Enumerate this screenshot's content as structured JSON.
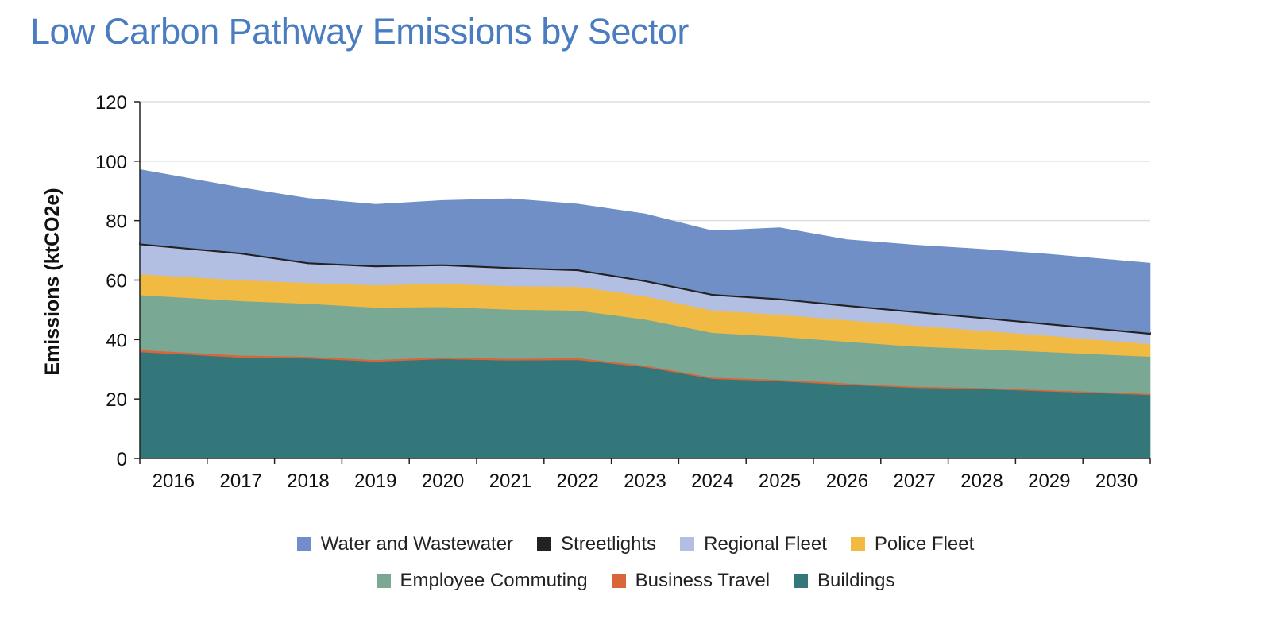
{
  "title": "Low Carbon Pathway Emissions by Sector",
  "chart_data": {
    "type": "area",
    "stacked": true,
    "title": "Low Carbon Pathway Emissions by Sector",
    "xlabel": "",
    "ylabel": "Emissions (ktCO2e)",
    "ylim": [
      0,
      120
    ],
    "yticks": [
      "0",
      "20",
      "40",
      "60",
      "80",
      "100",
      "120"
    ],
    "categories": [
      "2016",
      "2017",
      "2018",
      "2019",
      "2020",
      "2021",
      "2022",
      "2023",
      "2024",
      "2025",
      "2026",
      "2027",
      "2028",
      "2029",
      "2030"
    ],
    "grid": true,
    "legend_position": "bottom",
    "series": [
      {
        "name": "Buildings",
        "color": "#33777a",
        "values": [
          35.8,
          34.0,
          33.7,
          32.6,
          33.5,
          33.0,
          33.2,
          30.8,
          26.8,
          26.0,
          24.8,
          23.8,
          23.4,
          22.6,
          21.4
        ]
      },
      {
        "name": "Business Travel",
        "color": "#d9663a",
        "values": [
          0.7,
          0.7,
          0.6,
          0.6,
          0.6,
          0.6,
          0.6,
          0.5,
          0.5,
          0.5,
          0.5,
          0.4,
          0.4,
          0.4,
          0.4
        ]
      },
      {
        "name": "Employee Commuting",
        "color": "#79a895",
        "values": [
          18.5,
          18.3,
          17.8,
          17.6,
          16.9,
          16.5,
          16.0,
          15.5,
          15.0,
          14.5,
          14.0,
          13.5,
          13.0,
          12.8,
          12.5
        ]
      },
      {
        "name": "Police Fleet",
        "color": "#f1ba42",
        "values": [
          7.0,
          7.0,
          7.0,
          7.5,
          7.8,
          7.9,
          8.0,
          7.8,
          7.5,
          7.4,
          7.2,
          7.0,
          6.2,
          5.5,
          4.2
        ]
      },
      {
        "name": "Regional Fleet",
        "color": "#b3bfe2",
        "values": [
          10.0,
          8.9,
          6.5,
          6.3,
          6.2,
          6.0,
          5.5,
          5.0,
          5.2,
          5.1,
          4.8,
          4.5,
          4.2,
          3.8,
          3.4
        ]
      },
      {
        "name": "Streetlights",
        "color": "#222222",
        "values": [
          0.4,
          0.4,
          0.4,
          0.4,
          0.4,
          0.4,
          0.4,
          0.4,
          0.4,
          0.4,
          0.4,
          0.4,
          0.4,
          0.4,
          0.4
        ]
      },
      {
        "name": "Water and Wastewater",
        "color": "#6f8fc6",
        "values": [
          24.8,
          21.8,
          21.5,
          20.5,
          21.4,
          23.0,
          21.9,
          22.3,
          21.2,
          23.7,
          21.9,
          22.2,
          22.8,
          23.2,
          23.4
        ]
      }
    ]
  },
  "legend": {
    "row1": [
      {
        "label": "Water and Wastewater",
        "color": "#6f8fc6"
      },
      {
        "label": "Streetlights",
        "color": "#222222"
      },
      {
        "label": "Regional Fleet",
        "color": "#b3bfe2"
      },
      {
        "label": "Police Fleet",
        "color": "#f1ba42"
      }
    ],
    "row2": [
      {
        "label": "Employee Commuting",
        "color": "#79a895"
      },
      {
        "label": "Business Travel",
        "color": "#d9663a"
      },
      {
        "label": "Buildings",
        "color": "#33777a"
      }
    ]
  }
}
